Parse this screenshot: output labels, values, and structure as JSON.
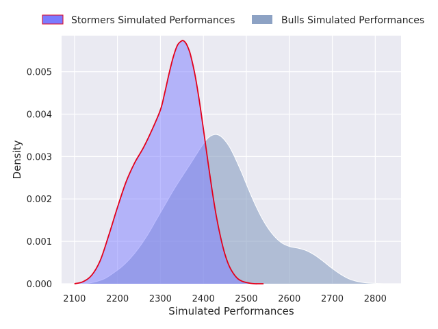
{
  "chart_data": {
    "type": "area",
    "xlabel": "Simulated Performances",
    "ylabel": "Density",
    "xlim": [
      2070,
      2860
    ],
    "ylim": [
      0,
      0.00585
    ],
    "x_ticks": [
      2100,
      2200,
      2300,
      2400,
      2500,
      2600,
      2700,
      2800
    ],
    "y_ticks": [
      0.0,
      0.001,
      0.002,
      0.003,
      0.004,
      0.005
    ],
    "y_tick_labels": [
      "0.000",
      "0.001",
      "0.002",
      "0.003",
      "0.004",
      "0.005"
    ],
    "grid": true,
    "legend_position": "top",
    "series": [
      {
        "name": "Bulls Simulated Performances",
        "color": "#8da2c4",
        "line_color": "#ffffff",
        "x": [
          2110,
          2130,
          2150,
          2170,
          2190,
          2210,
          2230,
          2250,
          2270,
          2290,
          2310,
          2330,
          2350,
          2370,
          2390,
          2400,
          2410,
          2420,
          2430,
          2440,
          2450,
          2460,
          2470,
          2480,
          2490,
          2500,
          2520,
          2540,
          2560,
          2580,
          2600,
          2620,
          2640,
          2660,
          2680,
          2700,
          2720,
          2740,
          2760,
          2780,
          2800,
          2820,
          2840,
          2860
        ],
        "y": [
          0.0,
          1e-05,
          5e-05,
          0.00012,
          0.00025,
          0.0004,
          0.0006,
          0.00085,
          0.00115,
          0.0015,
          0.00185,
          0.0022,
          0.00252,
          0.00283,
          0.00315,
          0.0033,
          0.00343,
          0.0035,
          0.00352,
          0.00348,
          0.00338,
          0.00324,
          0.00305,
          0.00283,
          0.0026,
          0.00235,
          0.00188,
          0.00148,
          0.00118,
          0.00098,
          0.00088,
          0.00084,
          0.00078,
          0.00067,
          0.00052,
          0.00036,
          0.00022,
          0.00011,
          5e-05,
          2e-05,
          1e-05,
          0.0,
          0.0,
          0.0
        ]
      },
      {
        "name": "Stormers Simulated Performances",
        "color": "#7b7bff",
        "line_color": "#e3001b",
        "x": [
          2100,
          2120,
          2140,
          2160,
          2180,
          2200,
          2220,
          2240,
          2260,
          2280,
          2300,
          2310,
          2320,
          2330,
          2340,
          2350,
          2355,
          2360,
          2365,
          2370,
          2380,
          2390,
          2400,
          2410,
          2420,
          2430,
          2440,
          2450,
          2460,
          2470,
          2480,
          2490,
          2500,
          2510,
          2520,
          2530,
          2540
        ],
        "y": [
          0.0,
          5e-05,
          0.0002,
          0.00055,
          0.00115,
          0.0018,
          0.0024,
          0.00285,
          0.0032,
          0.00362,
          0.0041,
          0.0045,
          0.00495,
          0.00535,
          0.00563,
          0.00573,
          0.00572,
          0.00566,
          0.00555,
          0.0054,
          0.00495,
          0.00435,
          0.00365,
          0.00292,
          0.00222,
          0.0016,
          0.0011,
          0.0007,
          0.00042,
          0.00024,
          0.00012,
          6e-05,
          3e-05,
          1e-05,
          0.0,
          0.0,
          0.0
        ]
      }
    ]
  }
}
